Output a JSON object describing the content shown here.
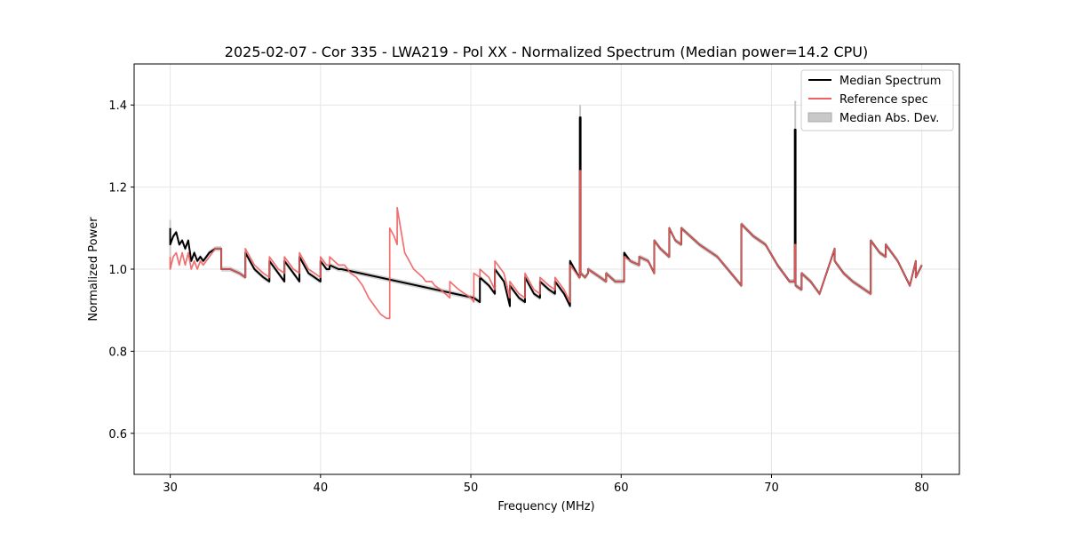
{
  "chart_data": {
    "type": "line",
    "title": "2025-02-07 - Cor 335 - LWA219 - Pol XX - Normalized Spectrum (Median power=14.2 CPU)",
    "xlabel": "Frequency (MHz)",
    "ylabel": "Normalized Power",
    "xlim": [
      27.6,
      82.5
    ],
    "ylim": [
      0.5,
      1.5
    ],
    "xticks": [
      30,
      40,
      50,
      60,
      70,
      80
    ],
    "yticks": [
      0.6,
      0.8,
      1.0,
      1.2,
      1.4
    ],
    "xtick_labels": [
      "30",
      "40",
      "50",
      "60",
      "70",
      "80"
    ],
    "ytick_labels": [
      "0.6",
      "0.8",
      "1.0",
      "1.2",
      "1.4"
    ],
    "grid": true,
    "legend_position": "top-right",
    "colors": {
      "median": "#000000",
      "reference": "#f06060",
      "mad": "#c8c8c8"
    },
    "series": [
      {
        "name": "Median Spectrum",
        "x": [
          30.0,
          30.0,
          30.2,
          30.4,
          30.6,
          30.8,
          31.0,
          31.2,
          31.4,
          31.6,
          31.8,
          32.0,
          32.2,
          32.6,
          33.0,
          33.4,
          33.4,
          34.0,
          34.6,
          35.0,
          35.0,
          35.6,
          36.2,
          36.6,
          36.6,
          37.2,
          37.6,
          37.6,
          38.2,
          38.6,
          38.6,
          39.2,
          39.6,
          40.0,
          40.0,
          40.4,
          40.6,
          40.6,
          41.2,
          41.4,
          50.2,
          50.6,
          50.6,
          51.2,
          51.6,
          51.6,
          52.2,
          52.6,
          52.6,
          53.2,
          53.6,
          53.6,
          54.2,
          54.6,
          54.6,
          55.2,
          55.6,
          55.6,
          56.2,
          56.6,
          56.6,
          57.2,
          57.25,
          57.25,
          57.3,
          57.3,
          57.6,
          57.8,
          57.8,
          58.6,
          59.0,
          59.0,
          59.6,
          60.2,
          60.2,
          60.6,
          61.2,
          61.2,
          61.8,
          62.2,
          62.2,
          62.6,
          63.2,
          63.2,
          63.6,
          64.0,
          64.0,
          64.6,
          65.2,
          66.4,
          68.0,
          68.0,
          68.8,
          69.6,
          70.4,
          71.2,
          71.55,
          71.55,
          71.6,
          71.6,
          72.0,
          72.0,
          72.6,
          73.2,
          74.2,
          74.2,
          74.8,
          75.4,
          76.2,
          76.6,
          76.6,
          77.2,
          77.6,
          77.6,
          78.4,
          79.2,
          79.6,
          79.6,
          80.0
        ],
        "values": [
          1.1,
          1.06,
          1.08,
          1.09,
          1.06,
          1.07,
          1.05,
          1.07,
          1.02,
          1.04,
          1.02,
          1.03,
          1.02,
          1.04,
          1.05,
          1.05,
          1.0,
          1.0,
          0.99,
          0.98,
          1.04,
          1.0,
          0.98,
          0.97,
          1.02,
          0.99,
          0.97,
          1.02,
          0.99,
          0.97,
          1.03,
          0.99,
          0.98,
          0.97,
          1.02,
          1.0,
          1.0,
          1.01,
          1.0,
          1.0,
          0.93,
          0.92,
          0.98,
          0.96,
          0.94,
          1.0,
          0.97,
          0.91,
          0.96,
          0.93,
          0.92,
          0.98,
          0.94,
          0.93,
          0.97,
          0.95,
          0.94,
          0.97,
          0.94,
          0.91,
          1.02,
          0.98,
          0.98,
          1.37,
          1.37,
          0.99,
          0.98,
          0.99,
          1.0,
          0.98,
          0.97,
          0.99,
          0.97,
          0.97,
          1.04,
          1.02,
          1.01,
          1.03,
          1.02,
          0.99,
          1.07,
          1.05,
          1.03,
          1.1,
          1.07,
          1.06,
          1.1,
          1.08,
          1.06,
          1.03,
          0.96,
          1.11,
          1.08,
          1.06,
          1.01,
          0.97,
          0.97,
          1.34,
          1.34,
          0.96,
          0.95,
          0.99,
          0.97,
          0.94,
          1.05,
          1.02,
          0.99,
          0.97,
          0.95,
          0.94,
          1.07,
          1.04,
          1.03,
          1.06,
          1.02,
          0.96,
          1.02,
          0.98,
          1.01
        ]
      },
      {
        "name": "Reference spec",
        "x": [
          30.0,
          30.0,
          30.2,
          30.4,
          30.6,
          30.8,
          31.0,
          31.2,
          31.4,
          31.6,
          31.8,
          32.0,
          32.2,
          32.6,
          33.0,
          33.4,
          33.4,
          34.0,
          34.6,
          35.0,
          35.0,
          35.6,
          36.2,
          36.6,
          36.6,
          37.2,
          37.6,
          37.6,
          38.2,
          38.6,
          38.6,
          39.2,
          39.6,
          40.0,
          40.0,
          40.4,
          40.6,
          40.6,
          41.2,
          41.6,
          42.0,
          42.4,
          42.8,
          43.2,
          43.6,
          44.0,
          44.4,
          44.6,
          44.6,
          44.9,
          45.1,
          45.1,
          45.6,
          46.2,
          46.8,
          47.0,
          47.4,
          47.6,
          48.0,
          48.3,
          48.6,
          48.6,
          48.9,
          49.2,
          49.6,
          50.0,
          50.2,
          50.2,
          50.6,
          50.6,
          51.2,
          51.6,
          51.6,
          52.2,
          52.6,
          52.6,
          53.2,
          53.6,
          53.6,
          54.2,
          54.6,
          54.6,
          55.2,
          55.6,
          55.6,
          56.2,
          56.6,
          56.6,
          57.2,
          57.25,
          57.25,
          57.3,
          57.3,
          57.6,
          57.8,
          57.8,
          58.6,
          59.0,
          59.0,
          59.6,
          60.2,
          60.2,
          60.6,
          61.2,
          61.2,
          61.8,
          62.2,
          62.2,
          62.6,
          63.2,
          63.2,
          63.6,
          64.0,
          64.0,
          64.6,
          65.2,
          66.4,
          68.0,
          68.0,
          68.8,
          69.6,
          70.4,
          71.2,
          71.55,
          71.55,
          71.6,
          71.6,
          72.0,
          72.0,
          72.6,
          73.2,
          74.2,
          74.2,
          74.8,
          75.4,
          76.2,
          76.6,
          76.6,
          77.2,
          77.6,
          77.6,
          78.4,
          79.2,
          79.6,
          79.6,
          80.0
        ],
        "values": [
          1.03,
          1.0,
          1.03,
          1.04,
          1.01,
          1.04,
          1.01,
          1.04,
          1.0,
          1.02,
          1.0,
          1.02,
          1.01,
          1.03,
          1.05,
          1.05,
          1.0,
          1.0,
          0.99,
          0.98,
          1.05,
          1.01,
          0.99,
          0.98,
          1.03,
          1.0,
          0.99,
          1.03,
          1.0,
          0.99,
          1.04,
          1.0,
          0.99,
          0.98,
          1.03,
          1.01,
          1.01,
          1.03,
          1.01,
          1.01,
          0.99,
          0.98,
          0.96,
          0.93,
          0.91,
          0.89,
          0.88,
          0.88,
          1.1,
          1.08,
          1.06,
          1.15,
          1.04,
          1.0,
          0.98,
          0.97,
          0.97,
          0.96,
          0.95,
          0.94,
          0.93,
          0.97,
          0.96,
          0.95,
          0.94,
          0.93,
          0.92,
          0.99,
          0.98,
          1.0,
          0.98,
          0.95,
          1.02,
          0.99,
          0.93,
          0.97,
          0.94,
          0.93,
          0.99,
          0.95,
          0.94,
          0.98,
          0.96,
          0.95,
          0.98,
          0.95,
          0.92,
          1.01,
          0.98,
          0.98,
          1.24,
          1.24,
          0.99,
          0.98,
          0.99,
          1.0,
          0.98,
          0.97,
          0.99,
          0.97,
          0.97,
          1.03,
          1.02,
          1.01,
          1.03,
          1.02,
          0.99,
          1.07,
          1.05,
          1.03,
          1.1,
          1.07,
          1.06,
          1.1,
          1.08,
          1.06,
          1.03,
          0.96,
          1.11,
          1.08,
          1.06,
          1.01,
          0.97,
          0.97,
          1.06,
          1.06,
          0.96,
          0.95,
          0.99,
          0.97,
          0.94,
          1.05,
          1.02,
          0.99,
          0.97,
          0.95,
          0.94,
          1.07,
          1.04,
          1.03,
          1.06,
          1.02,
          0.96,
          1.02,
          0.98,
          1.01
        ]
      },
      {
        "name": "Median Abs. Dev.",
        "x": [
          57.27,
          71.58,
          30.0
        ],
        "values": [
          1.4,
          1.41,
          1.12
        ],
        "note": "grey band around median spectrum; peaks reach ~1.40 and ~1.41"
      }
    ]
  },
  "legend": {
    "items": [
      {
        "label": "Median Spectrum",
        "color": "#000000",
        "kind": "line"
      },
      {
        "label": "Reference spec",
        "color": "#f06060",
        "kind": "line"
      },
      {
        "label": "Median Abs. Dev.",
        "color": "#c8c8c8",
        "kind": "patch"
      }
    ]
  }
}
